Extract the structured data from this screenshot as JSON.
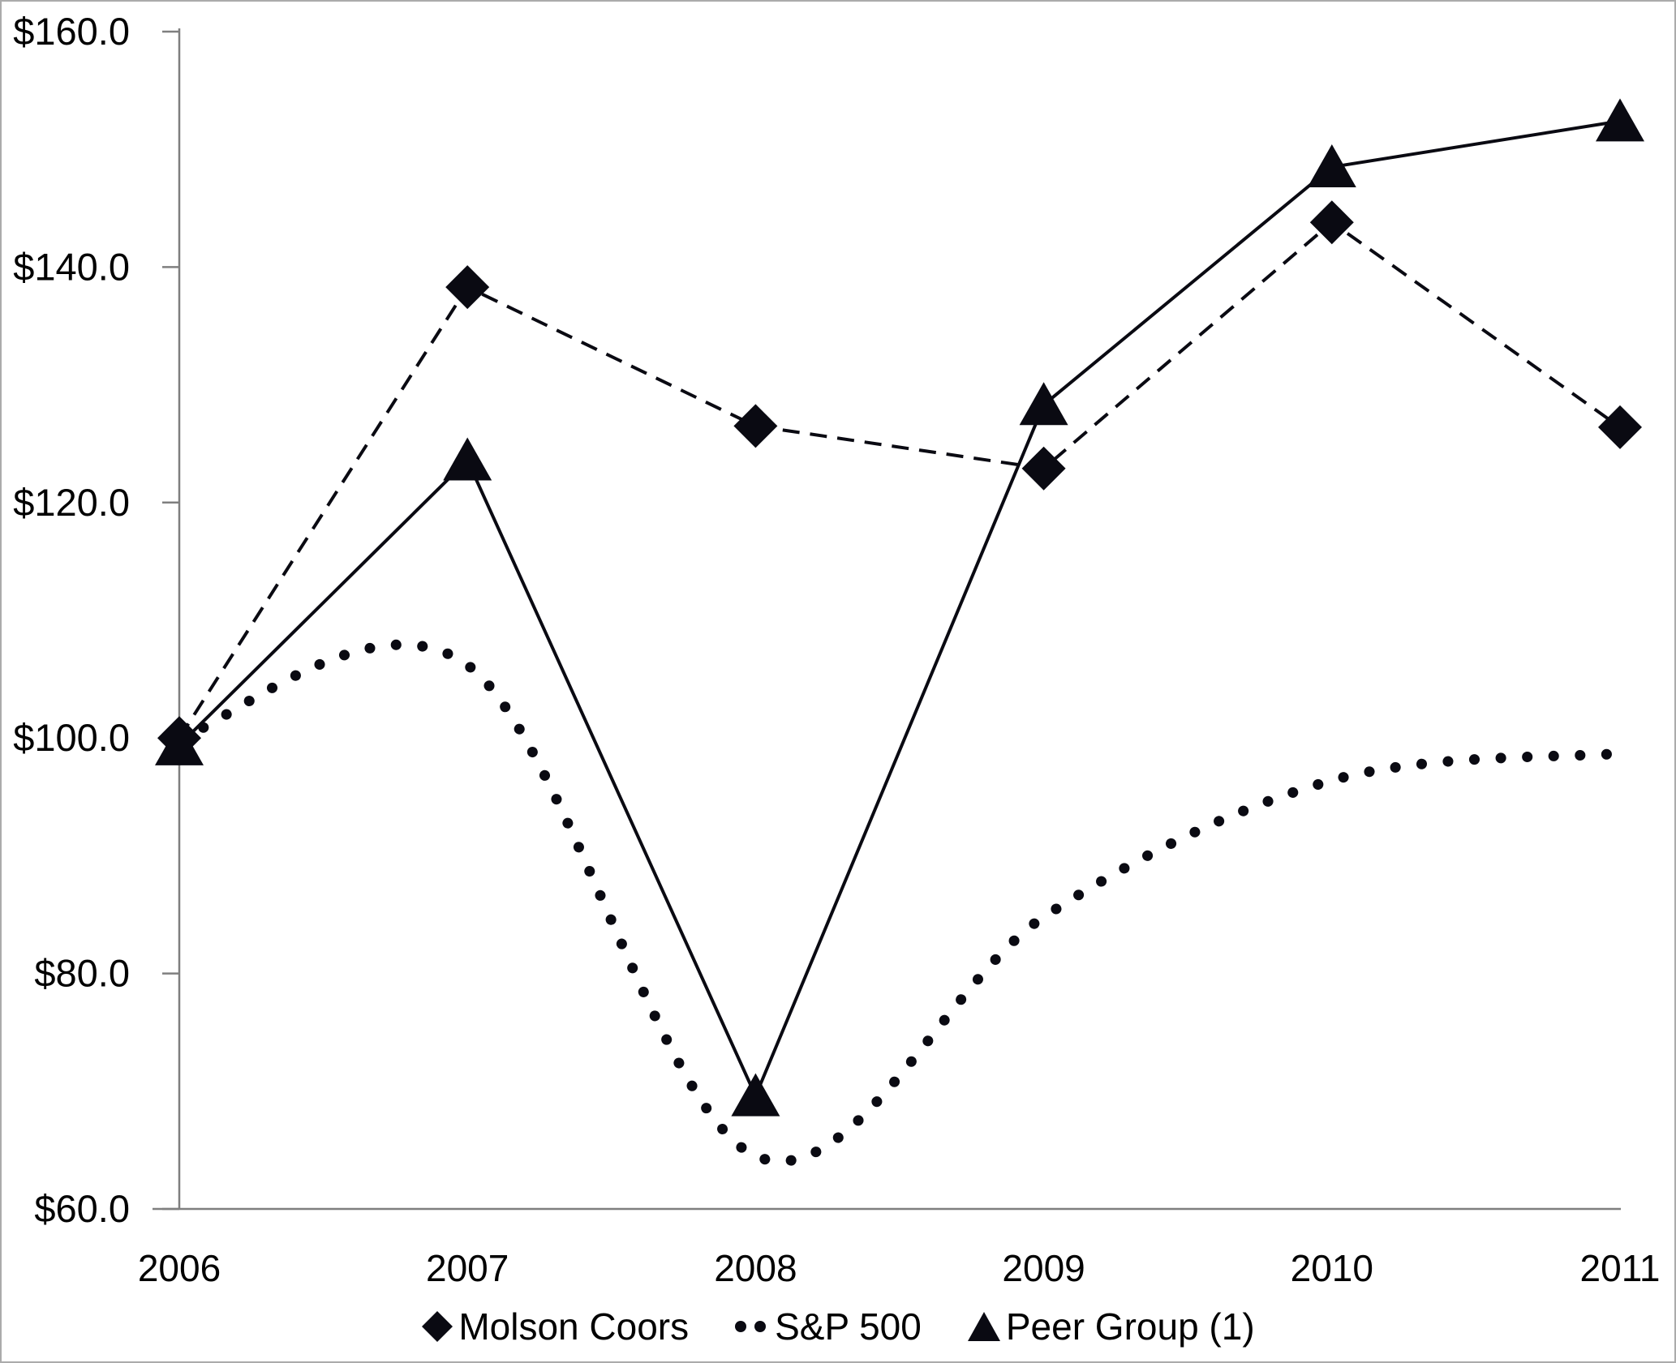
{
  "chart_data": {
    "type": "line",
    "title": "",
    "xlabel": "",
    "ylabel": "",
    "grid": false,
    "legend_position": "bottom",
    "ylim": [
      60,
      160
    ],
    "y_ticks": [
      {
        "label": "$160.0",
        "value": 160
      },
      {
        "label": "$140.0",
        "value": 140
      },
      {
        "label": "$120.0",
        "value": 120
      },
      {
        "label": "$100.0",
        "value": 100
      },
      {
        "label": "$80.0",
        "value": 80
      },
      {
        "label": "$60.0",
        "value": 60
      }
    ],
    "categories": [
      "2006",
      "2007",
      "2008",
      "2009",
      "2010",
      "2011"
    ],
    "series": [
      {
        "name": "Molson Coors",
        "marker": "diamond",
        "line": "dashed",
        "smooth": false,
        "values": [
          100.0,
          138.3,
          126.5,
          122.9,
          143.8,
          126.4
        ]
      },
      {
        "name": "S&P 500",
        "marker": "none",
        "line": "dotted",
        "smooth": true,
        "values": [
          100.0,
          106.2,
          64.5,
          84.8,
          96.4,
          98.7
        ]
      },
      {
        "name": "Peer Group (1)",
        "marker": "triangle",
        "line": "solid",
        "smooth": false,
        "values": [
          99.4,
          123.6,
          69.6,
          128.3,
          148.5,
          152.4
        ]
      }
    ],
    "colors": {
      "series": "#0a0a12",
      "axis": "#7f7f7f",
      "text": "#000000",
      "frame_border": "#ababab",
      "background": "#ffffff"
    }
  }
}
